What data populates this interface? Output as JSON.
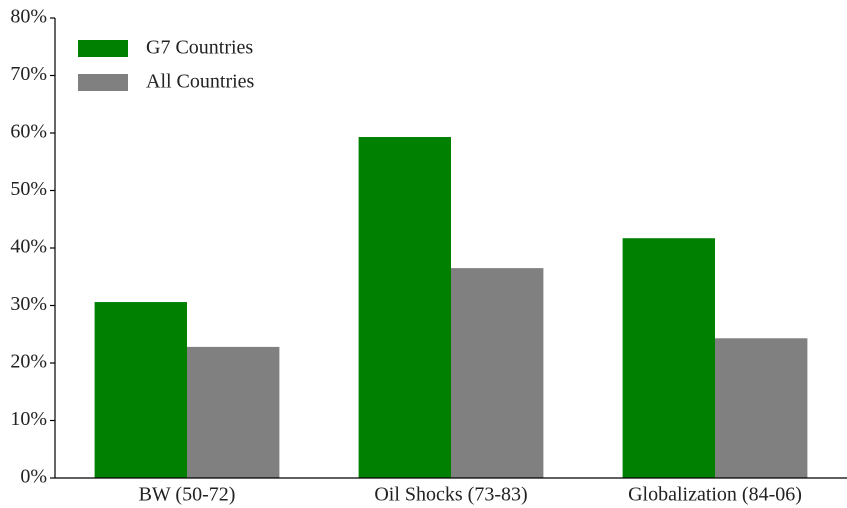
{
  "chart_data": {
    "type": "bar",
    "categories": [
      "BW (50-72)",
      "Oil Shocks (73-83)",
      "Globalization (84-06)"
    ],
    "series": [
      {
        "name": "G7 Countries",
        "color": "#008000",
        "values": [
          30.6,
          59.3,
          41.7
        ]
      },
      {
        "name": "All Countries",
        "color": "#808080",
        "values": [
          22.8,
          36.5,
          24.3
        ]
      }
    ],
    "ylim": [
      0,
      80
    ],
    "yticks": [
      {
        "value": 0,
        "label": "0%"
      },
      {
        "value": 10,
        "label": "10%"
      },
      {
        "value": 20,
        "label": "20%"
      },
      {
        "value": 30,
        "label": "30%"
      },
      {
        "value": 40,
        "label": "40%"
      },
      {
        "value": 50,
        "label": "50%"
      },
      {
        "value": 60,
        "label": "60%"
      },
      {
        "value": 70,
        "label": "70%"
      },
      {
        "value": 80,
        "label": "80%"
      }
    ],
    "grid": false,
    "legend": "upper-left"
  }
}
